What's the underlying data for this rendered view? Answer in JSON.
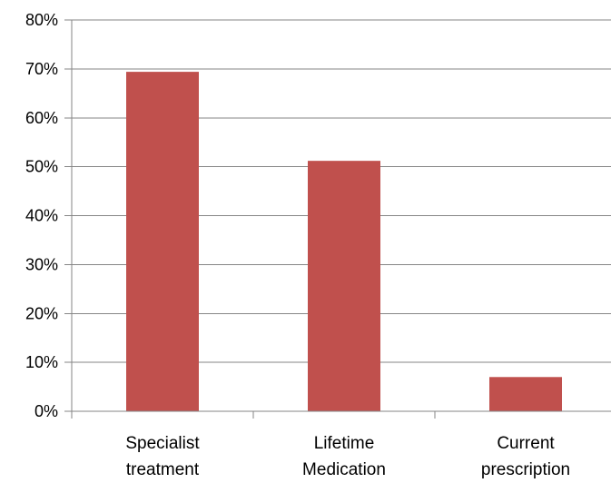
{
  "chart_data": {
    "type": "bar",
    "categories": [
      [
        "Specialist",
        "treatment"
      ],
      [
        "Lifetime",
        "Medication"
      ],
      [
        "Current",
        "prescription"
      ]
    ],
    "values": [
      69.4,
      51.2,
      7.0
    ],
    "ylim": [
      0,
      80
    ],
    "yticks": [
      "0%",
      "10%",
      "20%",
      "30%",
      "40%",
      "50%",
      "60%",
      "70%",
      "80%"
    ],
    "grid": true,
    "legend": "none",
    "colors": {
      "bar": "#C0504D",
      "grid": "#868686"
    }
  }
}
